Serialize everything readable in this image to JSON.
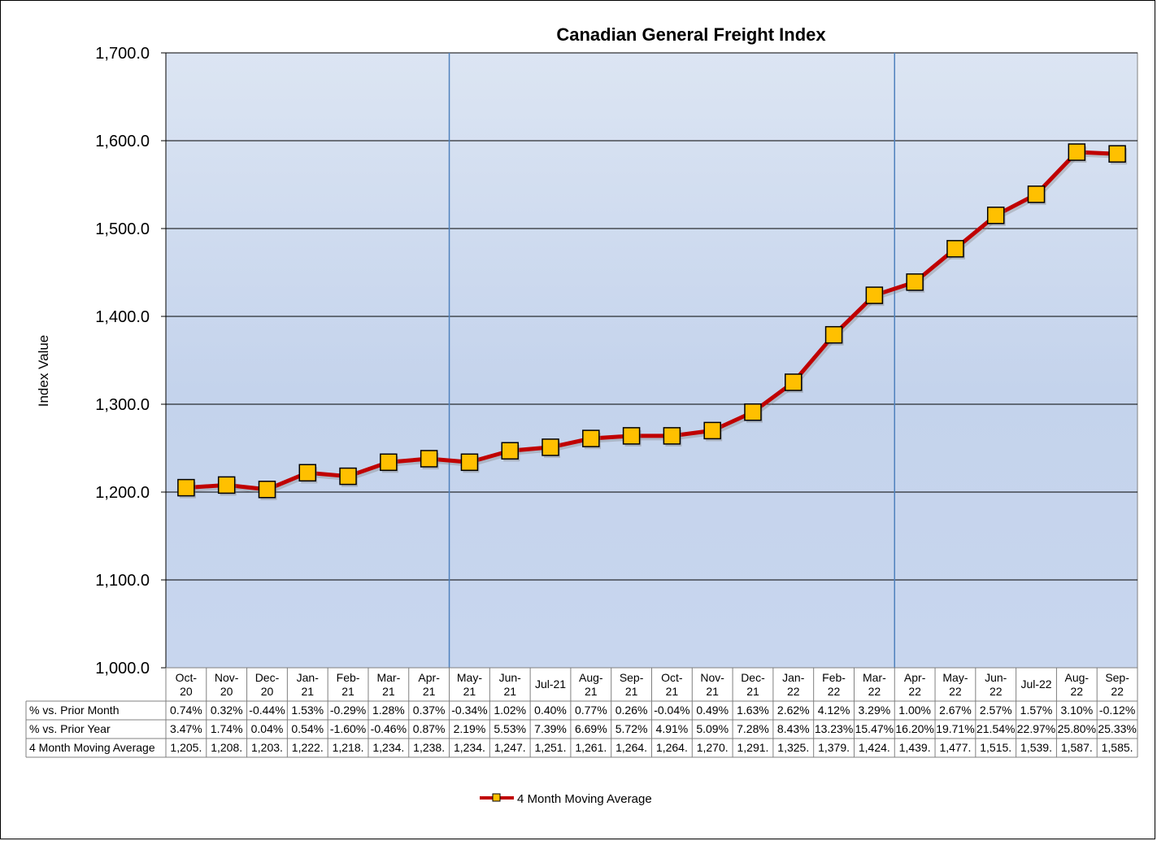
{
  "chart_data": {
    "type": "line",
    "title": "Canadian General Freight Index",
    "ylabel": "Index Value",
    "xlabel": "",
    "ylim": [
      1000,
      1700
    ],
    "ytick_step": 100,
    "ytick_labels": [
      "1,000.0",
      "1,100.0",
      "1,200.0",
      "1,300.0",
      "1,400.0",
      "1,500.0",
      "1,600.0",
      "1,700.0"
    ],
    "grid": true,
    "legend_position": "bottom-center",
    "categories": [
      [
        "Oct-",
        "20"
      ],
      [
        "Nov-",
        "20"
      ],
      [
        "Dec-",
        "20"
      ],
      [
        "Jan-",
        "21"
      ],
      [
        "Feb-",
        "21"
      ],
      [
        "Mar-",
        "21"
      ],
      [
        "Apr-",
        "21"
      ],
      [
        "May-",
        "21"
      ],
      [
        "Jun-",
        "21"
      ],
      [
        "Jul-21"
      ],
      [
        "Aug-",
        "21"
      ],
      [
        "Sep-",
        "21"
      ],
      [
        "Oct-",
        "21"
      ],
      [
        "Nov-",
        "21"
      ],
      [
        "Dec-",
        "21"
      ],
      [
        "Jan-",
        "22"
      ],
      [
        "Feb-",
        "22"
      ],
      [
        "Mar-",
        "22"
      ],
      [
        "Apr-",
        "22"
      ],
      [
        "May-",
        "22"
      ],
      [
        "Jun-",
        "22"
      ],
      [
        "Jul-22"
      ],
      [
        "Aug-",
        "22"
      ],
      [
        "Sep-",
        "22"
      ]
    ],
    "year_dividers_after_index": [
      6,
      17
    ],
    "series": [
      {
        "name": "4 Month Moving Average",
        "color": "#C00000",
        "marker_color": "#FFC000",
        "values": [
          1205,
          1208,
          1203,
          1222,
          1218,
          1234,
          1238,
          1234,
          1247,
          1251,
          1261,
          1264,
          1264,
          1270,
          1291,
          1325,
          1379,
          1424,
          1439,
          1477,
          1515,
          1539,
          1587,
          1585
        ]
      }
    ],
    "table": {
      "rows": [
        {
          "label": "% vs. Prior Month",
          "cells": [
            "0.74%",
            "0.32%",
            "-0.44%",
            "1.53%",
            "-0.29%",
            "1.28%",
            "0.37%",
            "-0.34%",
            "1.02%",
            "0.40%",
            "0.77%",
            "0.26%",
            "-0.04%",
            "0.49%",
            "1.63%",
            "2.62%",
            "4.12%",
            "3.29%",
            "1.00%",
            "2.67%",
            "2.57%",
            "1.57%",
            "3.10%",
            "-0.12%"
          ]
        },
        {
          "label": "% vs. Prior Year",
          "cells": [
            "3.47%",
            "1.74%",
            "0.04%",
            "0.54%",
            "-1.60%",
            "-0.46%",
            "0.87%",
            "2.19%",
            "5.53%",
            "7.39%",
            "6.69%",
            "5.72%",
            "4.91%",
            "5.09%",
            "7.28%",
            "8.43%",
            "13.23%",
            "15.47%",
            "16.20%",
            "19.71%",
            "21.54%",
            "22.97%",
            "25.80%",
            "25.33%"
          ]
        },
        {
          "label": "4 Month Moving Average",
          "cells": [
            "1,205.",
            "1,208.",
            "1,203.",
            "1,222.",
            "1,218.",
            "1,234.",
            "1,238.",
            "1,234.",
            "1,247.",
            "1,251.",
            "1,261.",
            "1,264.",
            "1,264.",
            "1,270.",
            "1,291.",
            "1,325.",
            "1,379.",
            "1,424.",
            "1,439.",
            "1,477.",
            "1,515.",
            "1,539.",
            "1,587.",
            "1,585."
          ]
        }
      ]
    }
  }
}
